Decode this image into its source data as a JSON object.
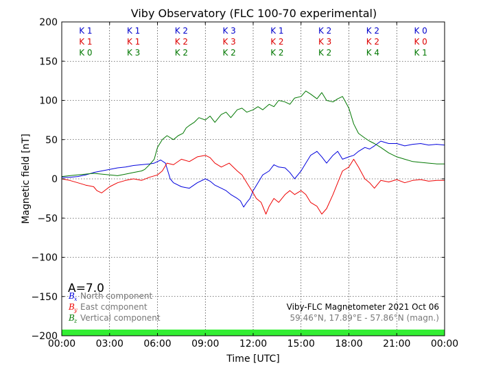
{
  "chart_data": {
    "type": "line",
    "title": "Viby Observatory (FLC 100-70 experimental)",
    "xlabel": "Time [UTC]",
    "ylabel": "Magnetic field [nT]",
    "xlim": [
      0,
      24
    ],
    "ylim": [
      -200,
      200
    ],
    "x_ticks": [
      "00:00",
      "03:00",
      "06:00",
      "09:00",
      "12:00",
      "15:00",
      "18:00",
      "21:00",
      "00:00"
    ],
    "y_ticks": [
      "200",
      "150",
      "100",
      "50",
      "0",
      "−50",
      "−100",
      "−150",
      "−200"
    ],
    "grid": true,
    "k_index": {
      "series": [
        {
          "name": "north",
          "color": "#0000cc",
          "labels": [
            "K 1",
            "K 1",
            "K 2",
            "K 3",
            "K 1",
            "K 2",
            "K 2",
            "K 0"
          ]
        },
        {
          "name": "east",
          "color": "#dd0000",
          "labels": [
            "K 1",
            "K 1",
            "K 2",
            "K 3",
            "K 2",
            "K 3",
            "K 2",
            "K 0"
          ]
        },
        {
          "name": "vertical",
          "color": "#007700",
          "labels": [
            "K 0",
            "K 3",
            "K 2",
            "K 2",
            "K 2",
            "K 2",
            "K 4",
            "K 1"
          ]
        }
      ]
    },
    "a_index": "A=7.0",
    "series": [
      {
        "name": "North component",
        "symbol": "B",
        "subscript": "x",
        "color": "#0000dd",
        "x": [
          0,
          0.5,
          1,
          1.5,
          2,
          2.5,
          3,
          3.5,
          4,
          4.5,
          5,
          5.5,
          5.8,
          6,
          6.2,
          6.5,
          6.8,
          7,
          7.5,
          8,
          8.5,
          9,
          9.3,
          9.6,
          10,
          10.3,
          10.6,
          11,
          11.2,
          11.4,
          11.6,
          11.8,
          12,
          12.3,
          12.6,
          13,
          13.3,
          13.6,
          14,
          14.3,
          14.6,
          15,
          15.3,
          15.6,
          16,
          16.3,
          16.6,
          17,
          17.3,
          17.6,
          18,
          18.3,
          18.6,
          19,
          19.3,
          19.6,
          20,
          20.5,
          21,
          21.5,
          22,
          22.5,
          23,
          23.5,
          24
        ],
        "values": [
          2,
          2,
          3,
          5,
          8,
          10,
          12,
          14,
          15,
          17,
          18,
          19,
          20,
          22,
          24,
          20,
          0,
          -5,
          -10,
          -12,
          -5,
          0,
          -3,
          -8,
          -12,
          -15,
          -20,
          -25,
          -28,
          -36,
          -30,
          -25,
          -15,
          -5,
          5,
          10,
          18,
          15,
          14,
          8,
          0,
          10,
          20,
          30,
          35,
          28,
          20,
          30,
          35,
          25,
          28,
          30,
          35,
          40,
          38,
          42,
          48,
          45,
          45,
          42,
          44,
          45,
          43,
          44,
          43
        ]
      },
      {
        "name": "East component",
        "symbol": "B",
        "subscript": "y",
        "color": "#ee0000",
        "x": [
          0,
          0.5,
          1,
          1.5,
          2,
          2.2,
          2.5,
          3,
          3.5,
          4,
          4.5,
          5,
          5.5,
          6,
          6.3,
          6.6,
          7,
          7.5,
          8,
          8.5,
          9,
          9.3,
          9.6,
          10,
          10.5,
          11,
          11.3,
          11.6,
          12,
          12.2,
          12.5,
          12.8,
          13,
          13.3,
          13.6,
          14,
          14.3,
          14.6,
          15,
          15.3,
          15.6,
          16,
          16.3,
          16.6,
          17,
          17.3,
          17.6,
          18,
          18.3,
          18.6,
          19,
          19.3,
          19.6,
          20,
          20.5,
          21,
          21.5,
          22,
          22.5,
          23,
          23.5,
          24
        ],
        "values": [
          0,
          -2,
          -5,
          -8,
          -10,
          -15,
          -18,
          -10,
          -5,
          -2,
          0,
          -2,
          2,
          5,
          10,
          20,
          18,
          25,
          22,
          28,
          30,
          27,
          20,
          15,
          20,
          10,
          5,
          -5,
          -18,
          -25,
          -30,
          -45,
          -35,
          -25,
          -30,
          -20,
          -15,
          -20,
          -15,
          -20,
          -30,
          -35,
          -45,
          -38,
          -20,
          -5,
          10,
          15,
          25,
          15,
          0,
          -5,
          -12,
          -2,
          -4,
          -1,
          -5,
          -2,
          -1,
          -3,
          -2,
          -2
        ]
      },
      {
        "name": "Vertical component",
        "symbol": "B",
        "subscript": "z",
        "color": "#007700",
        "x": [
          0,
          0.5,
          1,
          1.5,
          2,
          2.5,
          3,
          3.5,
          4,
          4.5,
          5,
          5.2,
          5.5,
          5.8,
          6,
          6.3,
          6.6,
          7,
          7.3,
          7.6,
          7.8,
          8,
          8.3,
          8.6,
          9,
          9.3,
          9.6,
          10,
          10.3,
          10.6,
          11,
          11.3,
          11.6,
          12,
          12.3,
          12.6,
          13,
          13.3,
          13.6,
          14,
          14.3,
          14.6,
          15,
          15.3,
          15.6,
          16,
          16.3,
          16.6,
          17,
          17.3,
          17.6,
          18,
          18.3,
          18.6,
          19,
          19.3,
          19.6,
          20,
          20.5,
          21,
          21.5,
          22,
          22.5,
          23,
          23.5,
          24
        ],
        "values": [
          3,
          4,
          5,
          6,
          7,
          6,
          5,
          4,
          6,
          8,
          10,
          12,
          18,
          25,
          40,
          50,
          55,
          50,
          55,
          58,
          65,
          68,
          72,
          78,
          75,
          80,
          72,
          82,
          85,
          78,
          88,
          90,
          85,
          88,
          92,
          88,
          95,
          92,
          100,
          98,
          95,
          103,
          105,
          112,
          108,
          102,
          110,
          100,
          98,
          102,
          105,
          90,
          70,
          58,
          52,
          48,
          45,
          40,
          33,
          28,
          25,
          22,
          21,
          20,
          19,
          19
        ]
      }
    ],
    "status_bar_color": "#33ee33",
    "info": {
      "line1": "Viby-FLC Magnetometer 2021 Oct 06",
      "line2": "59.46°N, 17.89°E - 57.86°N (magn.)"
    }
  }
}
